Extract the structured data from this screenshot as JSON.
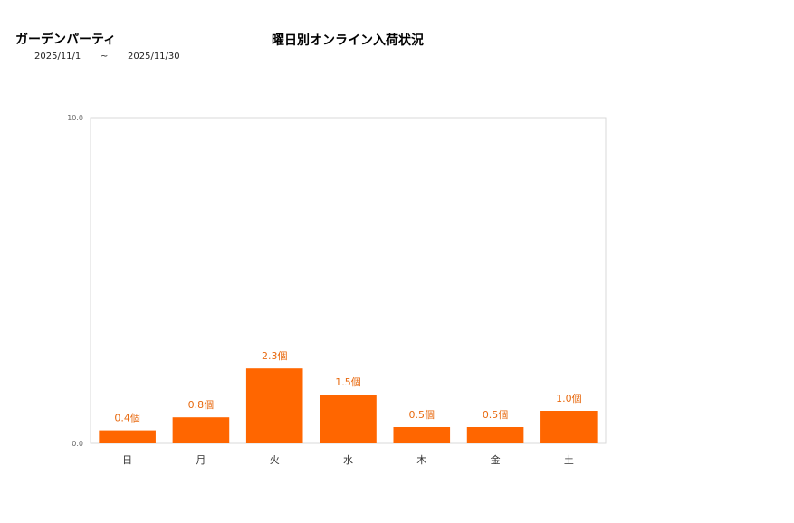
{
  "header": {
    "store_name": "ガーデンパーティ",
    "date_from": "2025/11/1",
    "date_sep": "~",
    "date_to": "2025/11/30"
  },
  "chart_data": {
    "type": "bar",
    "title": "曜日別オンライン入荷状況",
    "categories": [
      "日",
      "月",
      "火",
      "水",
      "木",
      "金",
      "土"
    ],
    "values": [
      0.4,
      0.8,
      2.3,
      1.5,
      0.5,
      0.5,
      1.0
    ],
    "data_labels": [
      "0.4個",
      "0.8個",
      "2.3個",
      "1.5個",
      "0.5個",
      "0.5個",
      "1.0個"
    ],
    "yticks": [
      "0.0",
      "10.0"
    ],
    "ylim": [
      0,
      10
    ],
    "xlabel": "",
    "ylabel": "",
    "grid": false,
    "bar_color": "#ff6600",
    "label_color": "#e86a10"
  }
}
